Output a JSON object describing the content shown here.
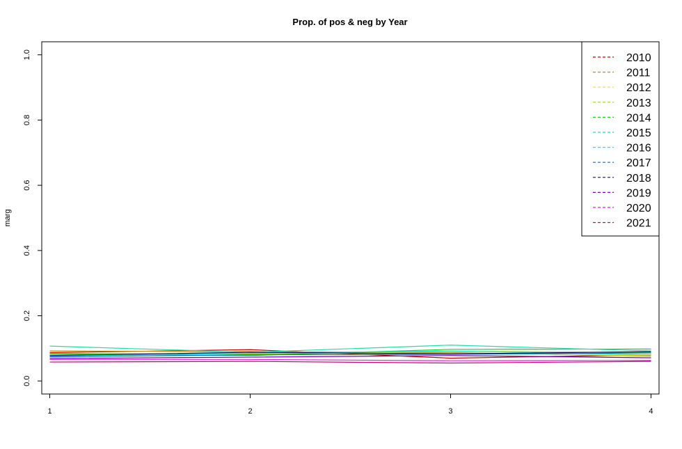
{
  "chart_data": {
    "type": "line",
    "title": "Prop. of pos & neg by Year",
    "xlabel": "",
    "ylabel": "marg",
    "x": [
      1,
      2,
      3,
      4
    ],
    "x_ticks": [
      "1",
      "2",
      "3",
      "4"
    ],
    "y_ticks": [
      "0.0",
      "0.2",
      "0.4",
      "0.6",
      "0.8",
      "1.0"
    ],
    "xlim": [
      0.96,
      4.04
    ],
    "ylim": [
      -0.04,
      1.04
    ],
    "legend_position": "top-right",
    "grid": false,
    "series": [
      {
        "name": "2010",
        "color": "#cc0000",
        "values": [
          0.087,
          0.096,
          0.07,
          0.08
        ]
      },
      {
        "name": "2011",
        "color": "#cc8800",
        "values": [
          0.092,
          0.09,
          0.087,
          0.076
        ]
      },
      {
        "name": "2012",
        "color": "#e8e800",
        "values": [
          0.081,
          0.084,
          0.085,
          0.078
        ]
      },
      {
        "name": "2013",
        "color": "#88dd00",
        "values": [
          0.085,
          0.082,
          0.091,
          0.087
        ]
      },
      {
        "name": "2014",
        "color": "#22cc22",
        "values": [
          0.083,
          0.078,
          0.097,
          0.098
        ]
      },
      {
        "name": "2015",
        "color": "#22ddaa",
        "values": [
          0.107,
          0.088,
          0.11,
          0.092
        ]
      },
      {
        "name": "2016",
        "color": "#22dddd",
        "values": [
          0.076,
          0.085,
          0.092,
          0.08
        ]
      },
      {
        "name": "2017",
        "color": "#0066dd",
        "values": [
          0.074,
          0.08,
          0.082,
          0.086
        ]
      },
      {
        "name": "2018",
        "color": "#111166",
        "values": [
          0.078,
          0.088,
          0.083,
          0.09
        ]
      },
      {
        "name": "2019",
        "color": "#7700aa",
        "values": [
          0.069,
          0.073,
          0.078,
          0.071
        ]
      },
      {
        "name": "2020",
        "color": "#dd22dd",
        "values": [
          0.066,
          0.066,
          0.062,
          0.063
        ]
      },
      {
        "name": "2021",
        "color": "#cc0077",
        "values": [
          0.058,
          0.06,
          0.055,
          0.06
        ]
      }
    ]
  }
}
